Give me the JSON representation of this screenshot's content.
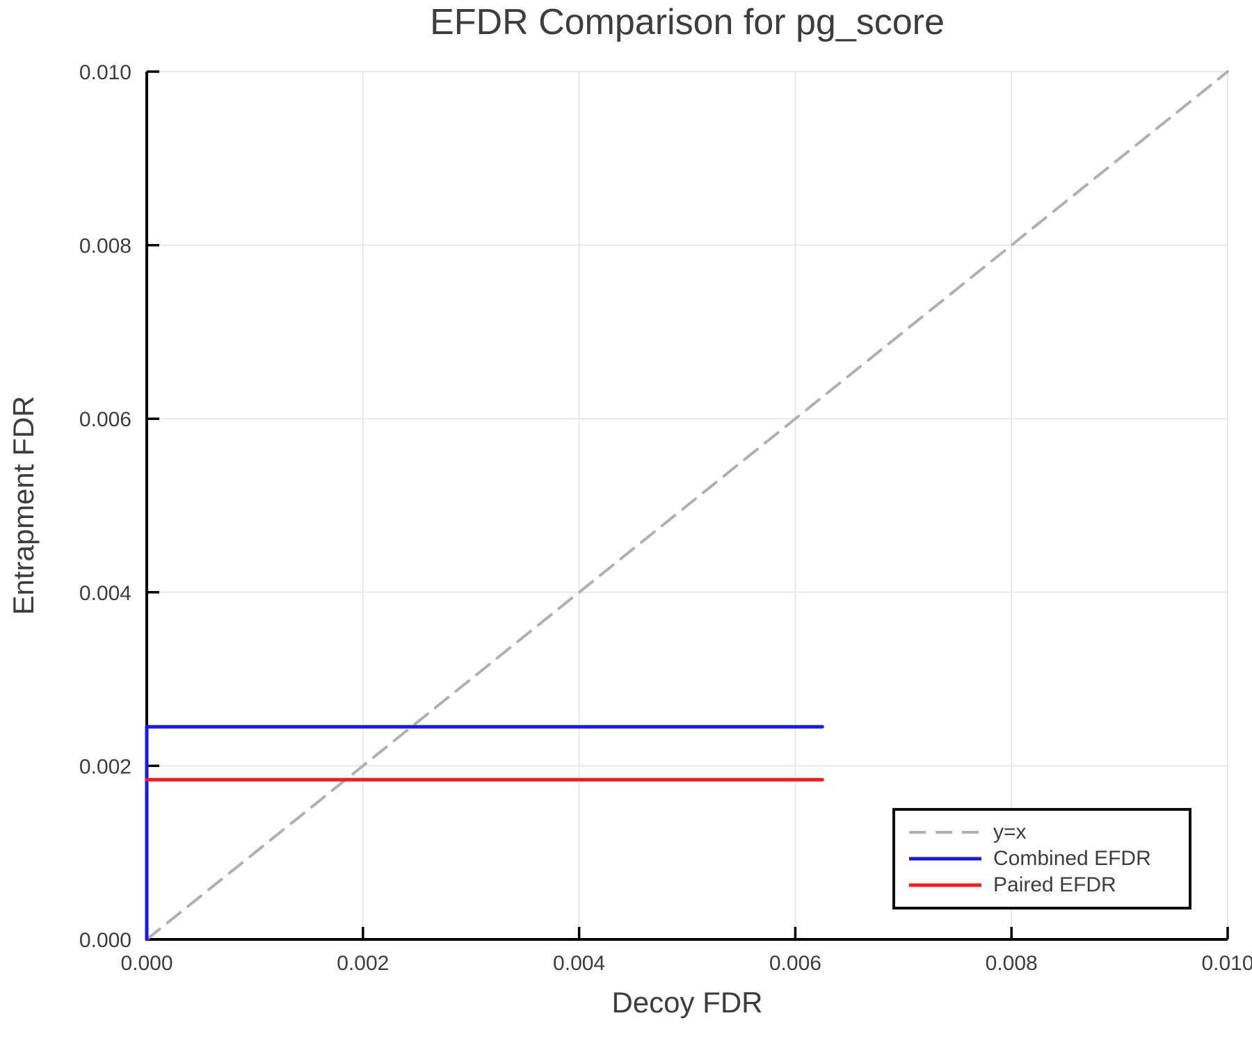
{
  "title": "EFDR Comparison for pg_score",
  "chart_data": {
    "type": "line",
    "title": "EFDR Comparison for pg_score",
    "xlabel": "Decoy FDR",
    "ylabel": "Entrapment FDR",
    "xlim": [
      0,
      0.01
    ],
    "ylim": [
      0,
      0.01
    ],
    "xticks": [
      0,
      0.002,
      0.004,
      0.006,
      0.008,
      0.01
    ],
    "yticks": [
      0,
      0.002,
      0.004,
      0.006,
      0.008,
      0.01
    ],
    "tick_decimals": 3,
    "grid": true,
    "grid_color": "#e8e8e8",
    "axis_color": "#000000",
    "text_color": "#3d3d3d",
    "background_color": "#ffffff",
    "legend_position": "bottom-right",
    "legend_border_color": "#0c0c0c",
    "dash_pattern": "24 14",
    "series": [
      {
        "name": "y=x",
        "color": "#b0b0b0",
        "style": "dashed",
        "width": 4,
        "points": [
          [
            0,
            0
          ],
          [
            0.01,
            0.01
          ]
        ]
      },
      {
        "name": "Combined EFDR",
        "color": "#1a1af0",
        "style": "solid",
        "width": 5,
        "points": [
          [
            0,
            0
          ],
          [
            0,
            0.00245
          ],
          [
            0.00625,
            0.00245
          ]
        ]
      },
      {
        "name": "Paired EFDR",
        "color": "#fa1a1a",
        "style": "solid",
        "width": 5,
        "points": [
          [
            0,
            0.00184
          ],
          [
            0.00625,
            0.00184
          ]
        ]
      }
    ]
  }
}
